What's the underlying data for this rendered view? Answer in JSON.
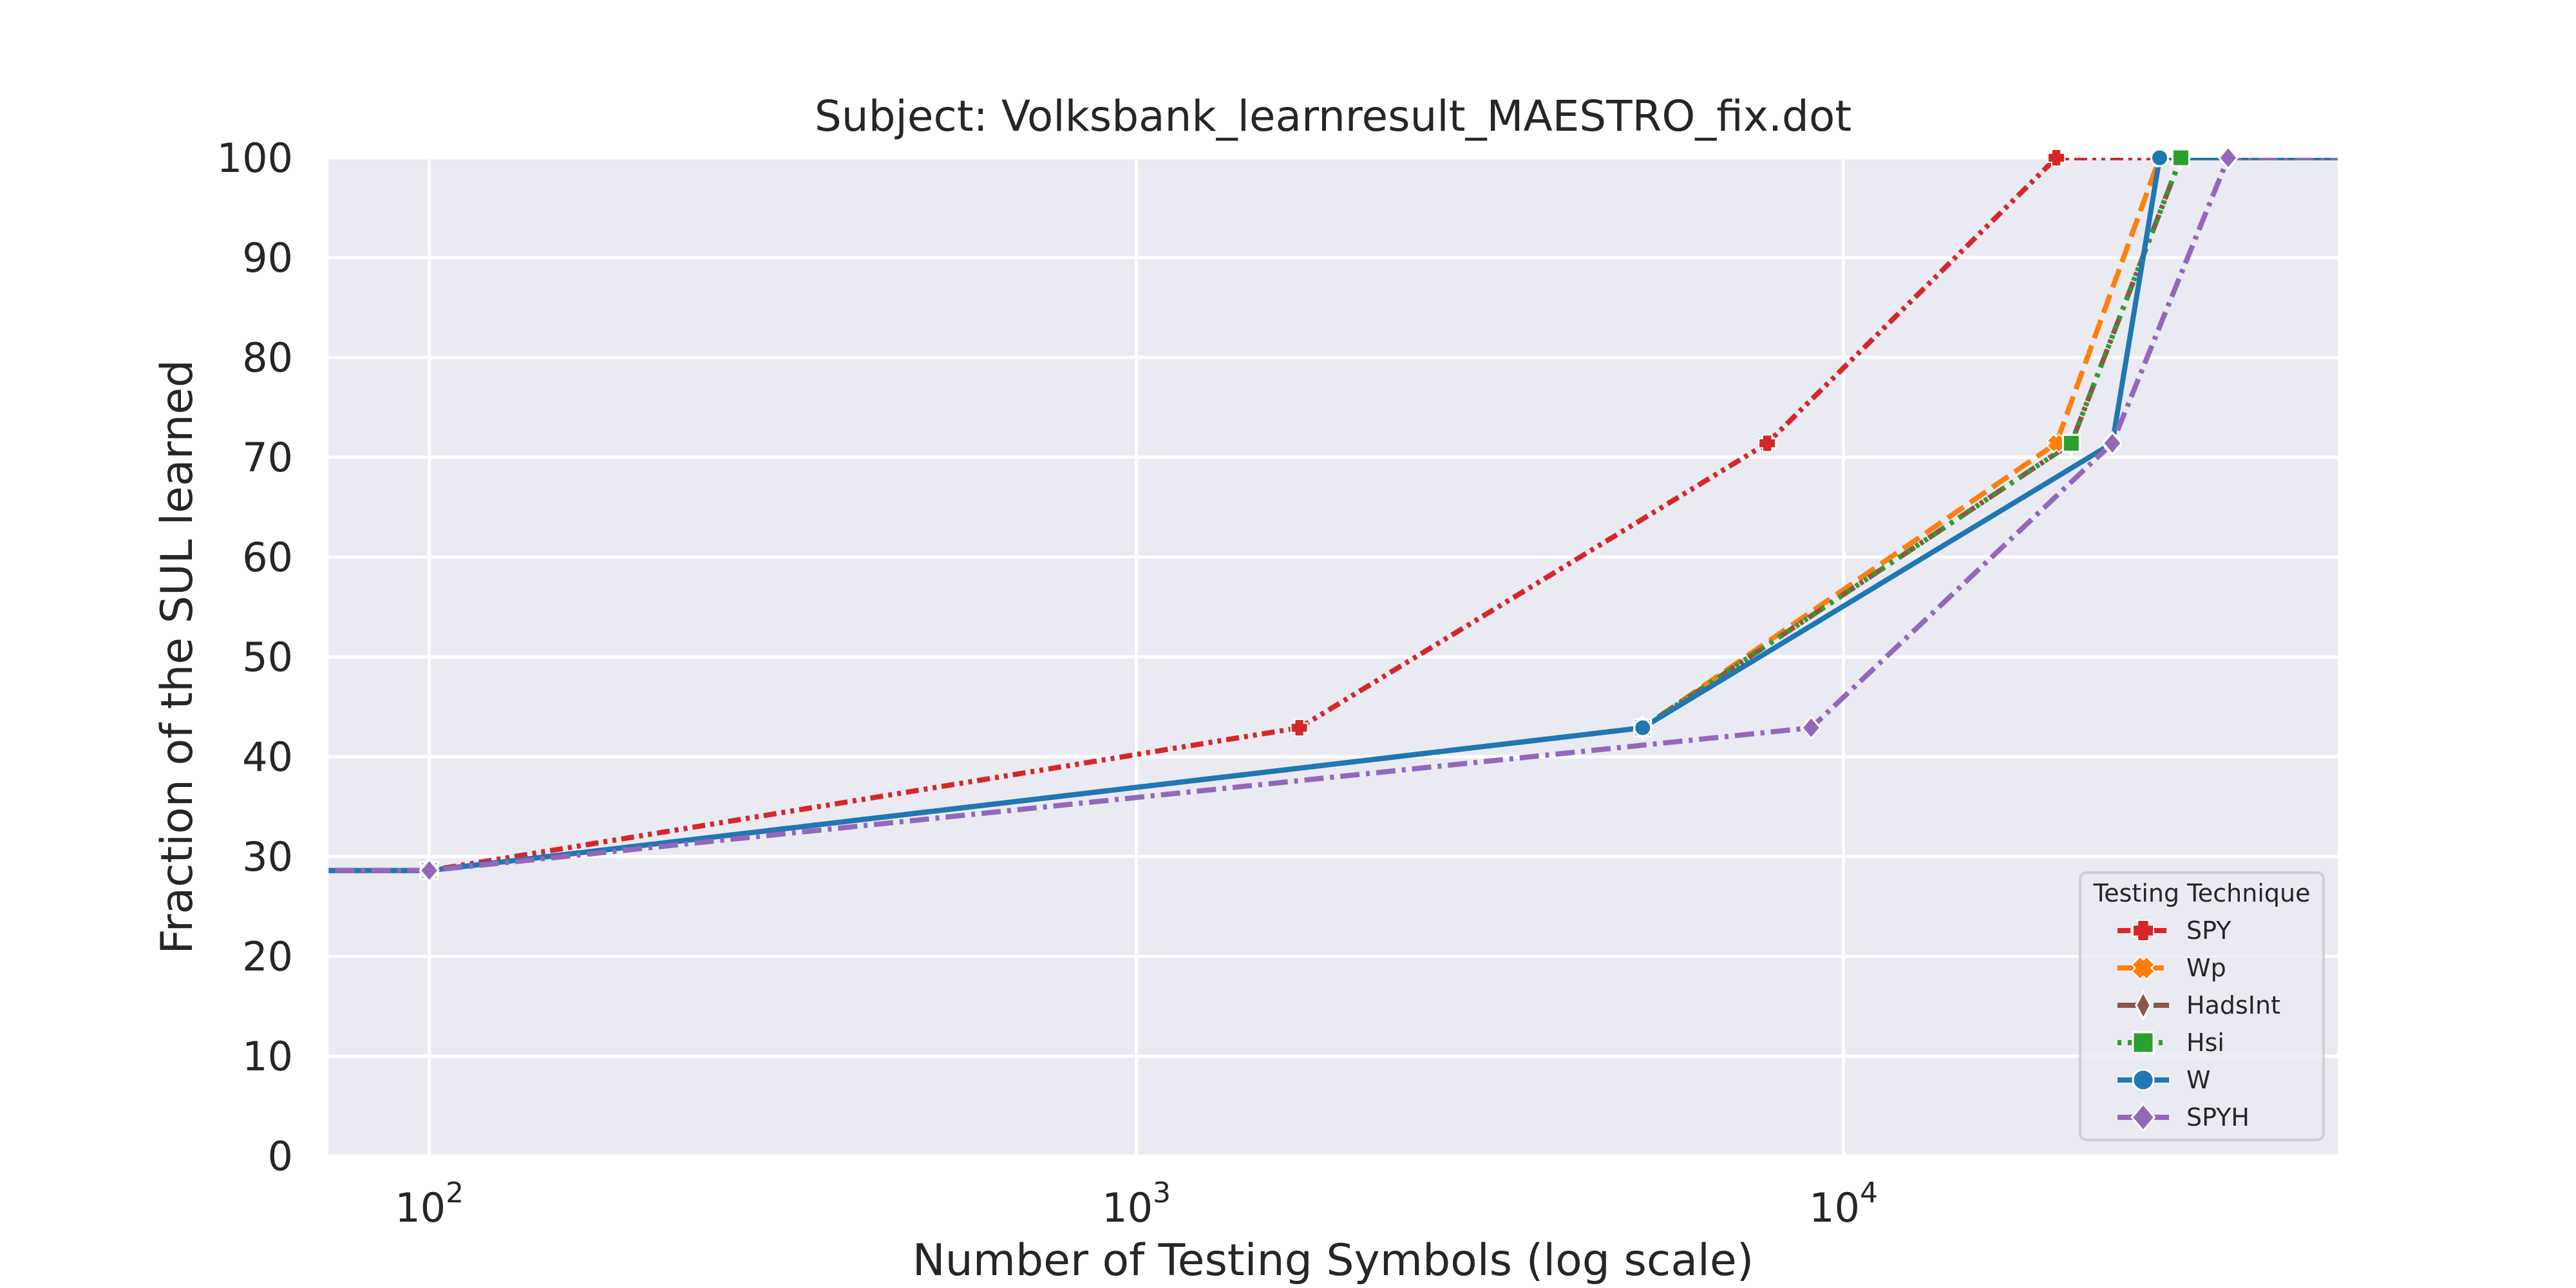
{
  "chart_data": {
    "type": "line",
    "title": "Subject: Volksbank_learnresult_MAESTRO_fix.dot",
    "xlabel": "Number of Testing Symbols (log scale)",
    "ylabel": "Fraction of the SUL learned",
    "xscale": "log",
    "xlim": [
      72,
      50000
    ],
    "ylim": [
      0,
      100
    ],
    "xticks": [
      {
        "value": 100,
        "base": "10",
        "exp": "2"
      },
      {
        "value": 1000,
        "base": "10",
        "exp": "3"
      },
      {
        "value": 10000,
        "base": "10",
        "exp": "4"
      }
    ],
    "yticks": [
      0,
      10,
      20,
      30,
      40,
      50,
      60,
      70,
      80,
      90,
      100
    ],
    "grid": true,
    "legend": {
      "title": "Testing Technique",
      "position": "lower-right"
    },
    "series": [
      {
        "name": "SPY",
        "color": "#d62728",
        "dash": "dashdotdot",
        "marker": "plus",
        "points": [
          [
            10,
            28.6
          ],
          [
            100,
            28.6
          ],
          [
            1700,
            42.9
          ],
          [
            7800,
            71.4
          ],
          [
            20000,
            100
          ],
          [
            200000,
            100
          ]
        ]
      },
      {
        "name": "Wp",
        "color": "#ff7f0e",
        "dash": "dashed",
        "marker": "x",
        "points": [
          [
            10,
            28.6
          ],
          [
            100,
            28.6
          ],
          [
            5200,
            42.9
          ],
          [
            20000,
            71.4
          ],
          [
            28000,
            100
          ],
          [
            200000,
            100
          ]
        ]
      },
      {
        "name": "HadsInt",
        "color": "#8c564b",
        "dash": "dashdot",
        "marker": "diamond-thin",
        "points": [
          [
            10,
            28.6
          ],
          [
            100,
            28.6
          ],
          [
            5200,
            42.9
          ],
          [
            21000,
            71.4
          ],
          [
            30000,
            100
          ],
          [
            200000,
            100
          ]
        ]
      },
      {
        "name": "Hsi",
        "color": "#2ca02c",
        "dash": "dotted",
        "marker": "square",
        "points": [
          [
            10,
            28.6
          ],
          [
            100,
            28.6
          ],
          [
            5200,
            42.9
          ],
          [
            21000,
            71.4
          ],
          [
            30000,
            100
          ],
          [
            200000,
            100
          ]
        ]
      },
      {
        "name": "W",
        "color": "#1f77b4",
        "dash": "solid",
        "marker": "circle",
        "points": [
          [
            10,
            28.6
          ],
          [
            100,
            28.6
          ],
          [
            5200,
            42.9
          ],
          [
            24000,
            71.4
          ],
          [
            28000,
            100
          ],
          [
            200000,
            100
          ]
        ]
      },
      {
        "name": "SPYH",
        "color": "#9467bd",
        "dash": "dashdot",
        "marker": "diamond",
        "points": [
          [
            10,
            28.6
          ],
          [
            100,
            28.6
          ],
          [
            9000,
            42.9
          ],
          [
            24000,
            71.4
          ],
          [
            35000,
            100
          ],
          [
            200000,
            100
          ]
        ]
      }
    ]
  }
}
